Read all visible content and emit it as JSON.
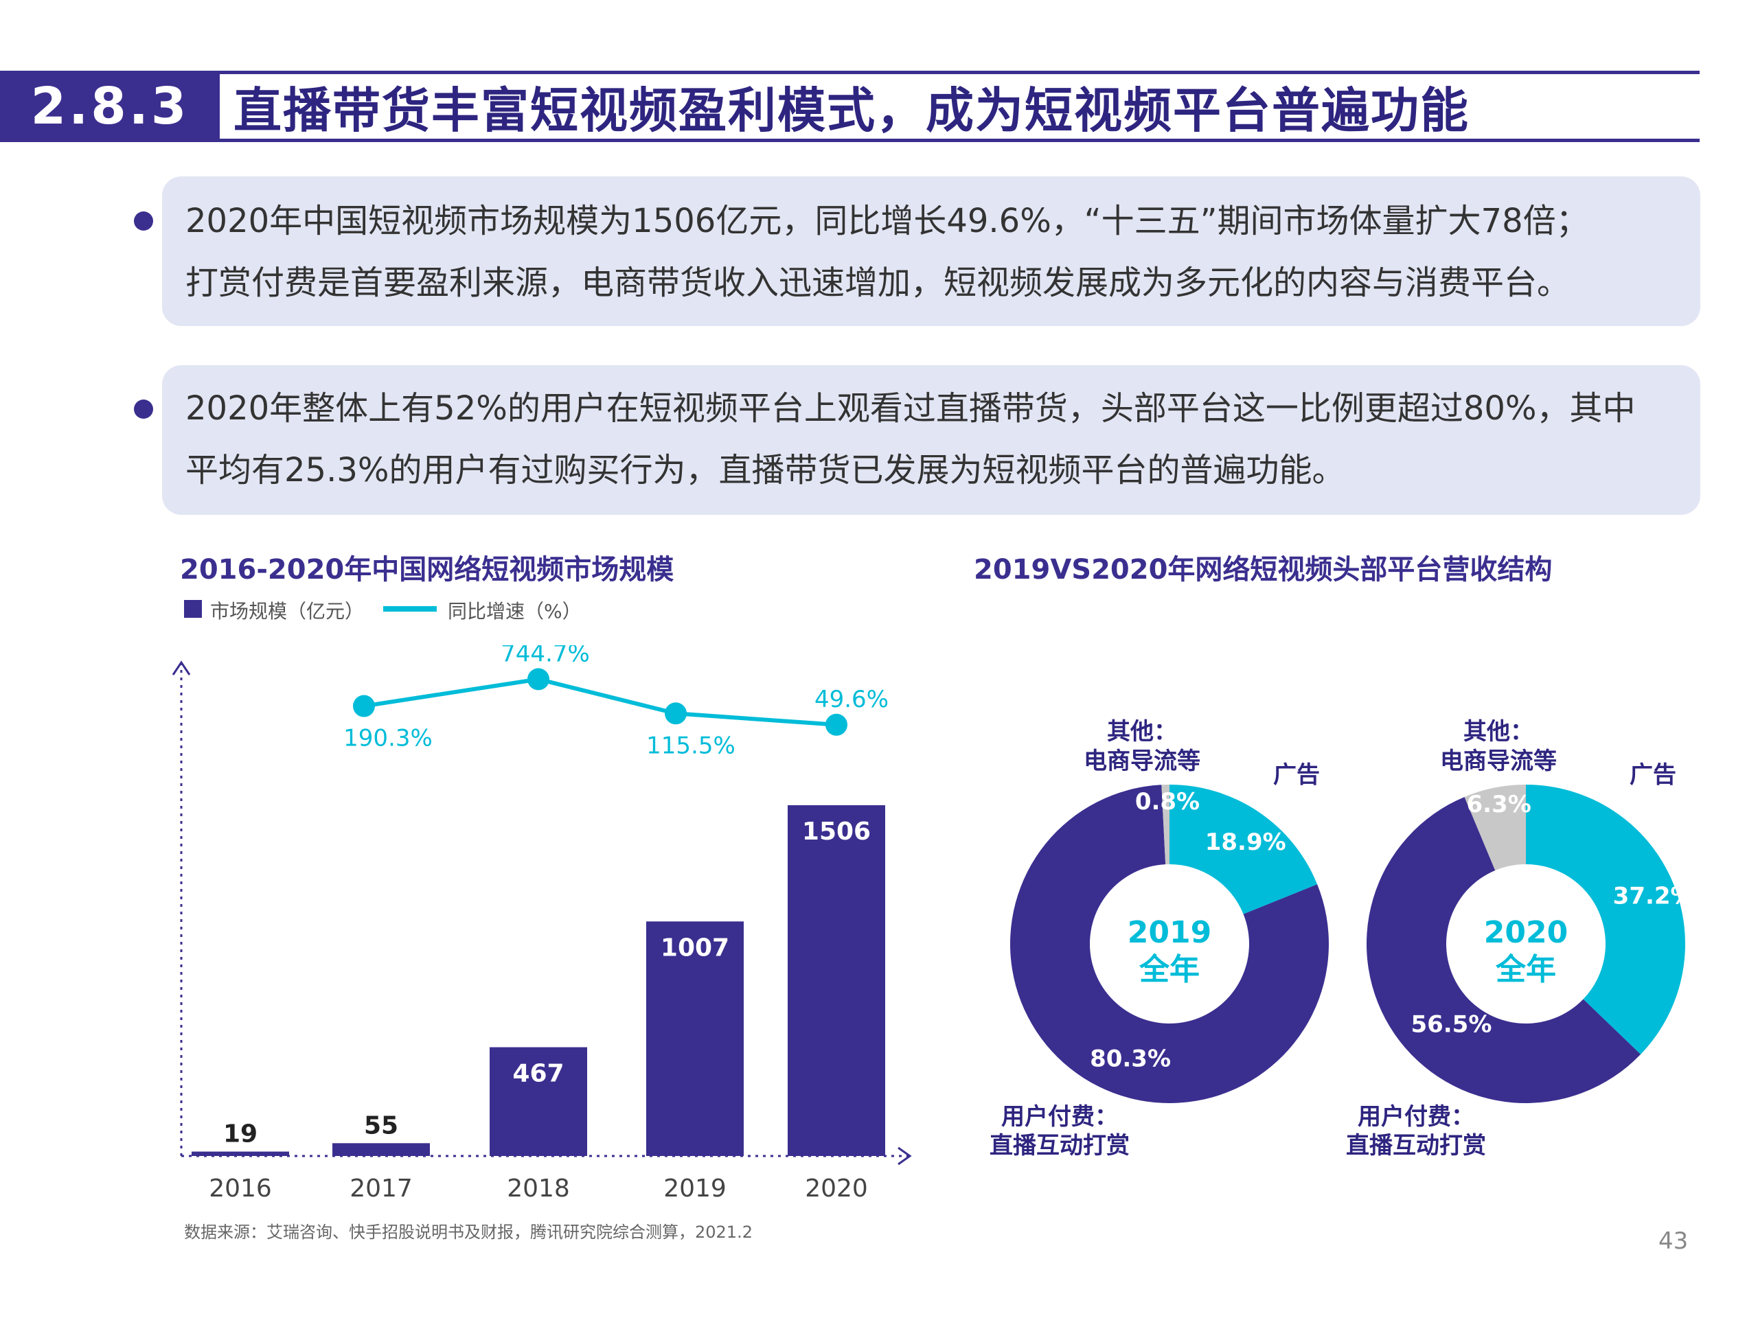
{
  "header": {
    "section": "2.8.3",
    "title": "直播带货丰富短视频盈利模式，成为短视频平台普遍功能"
  },
  "bullets": [
    {
      "line1": "2020年中国短视频市场规模为1506亿元，同比增长49.6%，“十三五”期间市场体量扩大78倍；",
      "line2": "打赏付费是首要盈利来源，电商带货收入迅速增加，短视频发展成为多元化的内容与消费平台。"
    },
    {
      "line1": "2020年整体上有52%的用户在短视频平台上观看过直播带货，头部平台这一比例更超过80%，其中",
      "line2": "平均有25.3%的用户有过购买行为，直播带货已发展为短视频平台的普遍功能。"
    }
  ],
  "colors": {
    "primary": "#3a2f8f",
    "accent": "#00bcd8",
    "grey": "#c8c8c8",
    "bullet_bg": "#e2e5f3"
  },
  "chart_data": [
    {
      "type": "bar",
      "title": "2016-2020年中国网络短视频市场规模",
      "categories": [
        "2016",
        "2017",
        "2018",
        "2019",
        "2020"
      ],
      "legend": {
        "bar": "市场规模（亿元）",
        "line": "同比增速（%）"
      },
      "series": [
        {
          "name": "市场规模（亿元）",
          "type": "bar",
          "values": [
            19,
            55,
            467,
            1007,
            1506
          ]
        },
        {
          "name": "同比增速（%）",
          "type": "line",
          "values": [
            null,
            190.3,
            744.7,
            115.5,
            49.6
          ],
          "labels": [
            "",
            "190.3%",
            "744.7%",
            "115.5%",
            "49.6%"
          ]
        }
      ],
      "ylim_bar": [
        0,
        1600
      ],
      "ylim_line": [
        0,
        900
      ]
    },
    {
      "type": "pie",
      "title": "2019VS2020年网络短视频头部平台营收结构",
      "donuts": [
        {
          "center_year": "2019",
          "center_label": "全年",
          "slices": [
            {
              "name": "广告",
              "value": 18.9,
              "label": "18.9%"
            },
            {
              "name": "用户付费：直播互动打赏",
              "value": 80.3,
              "label": "80.3%"
            },
            {
              "name": "其他：电商导流等",
              "value": 0.8,
              "label": "0.8%"
            }
          ]
        },
        {
          "center_year": "2020",
          "center_label": "全年",
          "slices": [
            {
              "name": "广告",
              "value": 37.2,
              "label": "37.2%"
            },
            {
              "name": "用户付费：直播互动打赏",
              "value": 56.5,
              "label": "56.5%"
            },
            {
              "name": "其他：电商导流等",
              "value": 6.3,
              "label": "6.3%"
            }
          ]
        }
      ],
      "outer_labels": {
        "other_line1": "其他：",
        "other_line2": "电商导流等",
        "ad": "广告",
        "user_line1": "用户付费：",
        "user_line2": "直播互动打赏"
      }
    }
  ],
  "footer": {
    "source": "数据来源：艾瑞咨询、快手招股说明书及财报，腾讯研究院综合测算，2021.2",
    "page": "43"
  }
}
